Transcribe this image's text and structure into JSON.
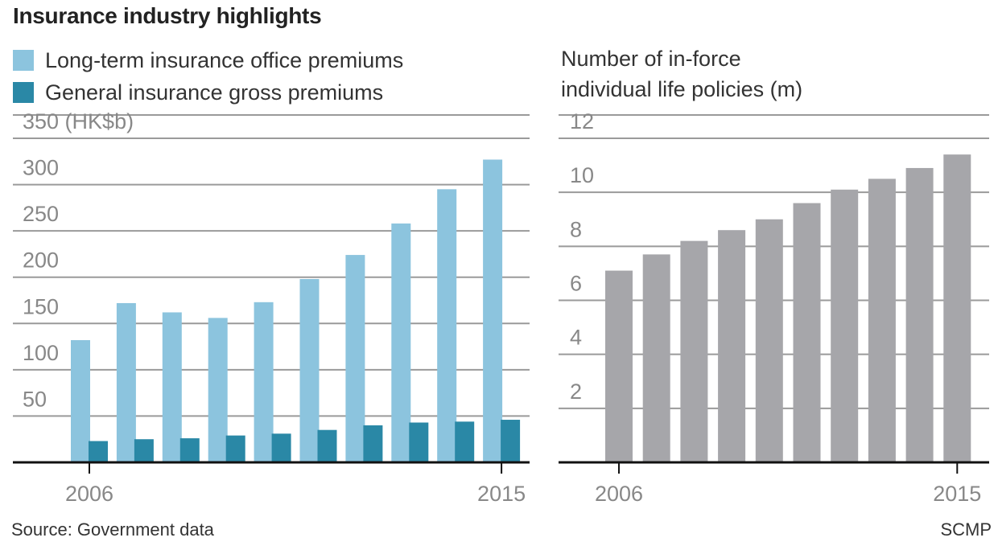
{
  "title": "Insurance industry highlights",
  "source": "Source: Government data",
  "credit": "SCMP",
  "colors": {
    "long_term": "#8cc4de",
    "general": "#2a88a6",
    "policies": "#a6a6aa",
    "grid": "#9a9a9a",
    "axis": "#111111",
    "tick_text": "#888888"
  },
  "chart_data": [
    {
      "type": "bar",
      "title": "",
      "ylabel": "(HK$b)",
      "ylim": [
        0,
        350
      ],
      "yticks": [
        50,
        100,
        150,
        200,
        250,
        300,
        350
      ],
      "ytick_labels": [
        "50",
        "100",
        "150",
        "200",
        "250",
        "300",
        "350 (HK$b)"
      ],
      "categories": [
        2006,
        2007,
        2008,
        2009,
        2010,
        2011,
        2012,
        2013,
        2014,
        2015
      ],
      "xtick_labels": [
        "2006",
        "",
        "",
        "",
        "",
        "",
        "",
        "",
        "",
        "2015"
      ],
      "series": [
        {
          "name": "Long-term insurance office premiums",
          "values": [
            132,
            172,
            162,
            156,
            173,
            198,
            224,
            258,
            295,
            327
          ]
        },
        {
          "name": "General insurance gross premiums",
          "values": [
            23,
            25,
            26,
            29,
            31,
            35,
            40,
            43,
            44,
            46
          ]
        }
      ],
      "grid": true,
      "legend": "top-left"
    },
    {
      "type": "bar",
      "title": "Number of in-force individual life policies (m)",
      "title_lines": [
        "Number of in-force",
        "individual life policies (m)"
      ],
      "ylim": [
        0,
        12
      ],
      "yticks": [
        2,
        4,
        6,
        8,
        10,
        12
      ],
      "ytick_labels": [
        "2",
        "4",
        "6",
        "8",
        "10",
        "12"
      ],
      "categories": [
        2006,
        2007,
        2008,
        2009,
        2010,
        2011,
        2012,
        2013,
        2014,
        2015
      ],
      "xtick_labels": [
        "2006",
        "",
        "",
        "",
        "",
        "",
        "",
        "",
        "",
        "2015"
      ],
      "series": [
        {
          "name": "",
          "values": [
            7.1,
            7.7,
            8.2,
            8.6,
            9.0,
            9.6,
            10.1,
            10.5,
            10.9,
            11.4
          ]
        }
      ],
      "grid": true
    }
  ]
}
